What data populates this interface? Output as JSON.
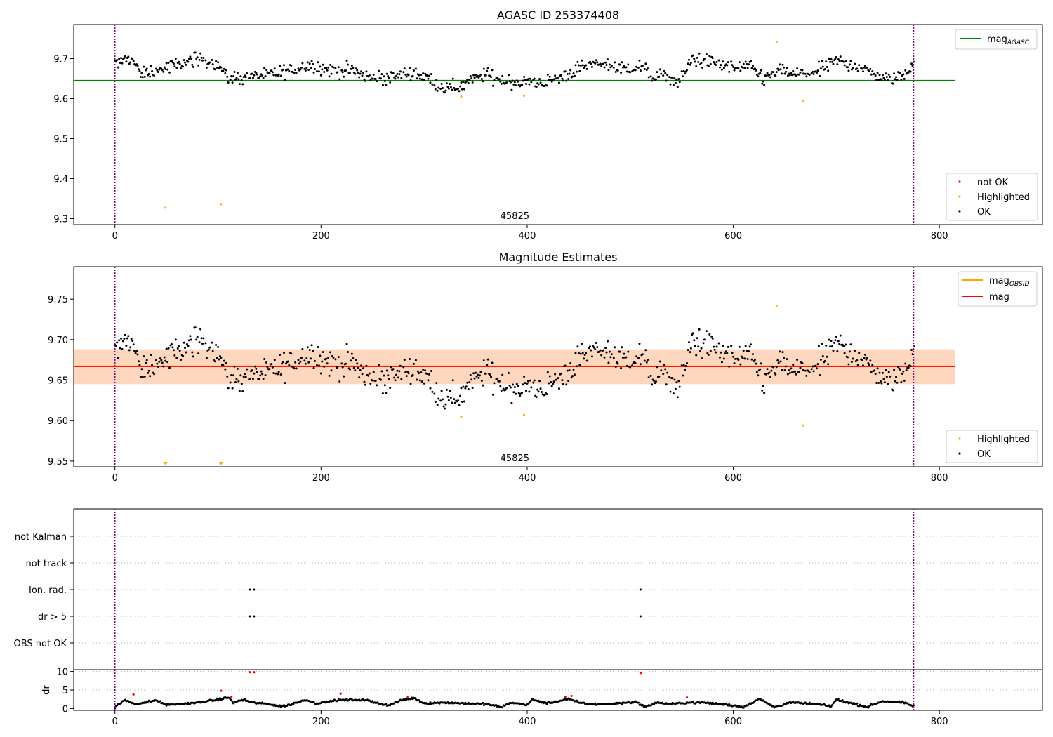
{
  "figure": {
    "title": "AGASC ID 253374408"
  },
  "chart_data": [
    {
      "type": "scatter",
      "title": "",
      "xlim": [
        -40,
        900
      ],
      "ylim": [
        9.285,
        9.785
      ],
      "xticks": [
        "0",
        "200",
        "400",
        "600",
        "800"
      ],
      "yticks": [
        "9.3",
        "9.4",
        "9.5",
        "9.6",
        "9.7"
      ],
      "obsid_label": "45825",
      "obs_bounds": [
        0,
        775
      ],
      "mag_agasc": 9.645,
      "legend_lines": [
        {
          "label": "mag",
          "sub": "AGASC",
          "color": "#008000"
        }
      ],
      "legend_points": [
        {
          "label": "not OK",
          "color": "#ff0000"
        },
        {
          "label": "Highlighted",
          "color": "#ffa500"
        },
        {
          "label": "OK",
          "color": "#000000"
        }
      ],
      "highlighted": [
        [
          49,
          9.327
        ],
        [
          103,
          9.336
        ],
        [
          336,
          9.605
        ],
        [
          397,
          9.607
        ],
        [
          642,
          9.742
        ],
        [
          668,
          9.593
        ]
      ],
      "ok_series": {
        "description": "775 OK points, times 0–775, mags follow trend (mean ≈ 9.67)",
        "trend_knots": [
          [
            0,
            9.685
          ],
          [
            15,
            9.705
          ],
          [
            25,
            9.66
          ],
          [
            40,
            9.67
          ],
          [
            60,
            9.685
          ],
          [
            85,
            9.7
          ],
          [
            100,
            9.685
          ],
          [
            110,
            9.65
          ],
          [
            130,
            9.655
          ],
          [
            150,
            9.66
          ],
          [
            170,
            9.67
          ],
          [
            190,
            9.685
          ],
          [
            210,
            9.67
          ],
          [
            230,
            9.67
          ],
          [
            250,
            9.65
          ],
          [
            270,
            9.655
          ],
          [
            290,
            9.665
          ],
          [
            305,
            9.65
          ],
          [
            315,
            9.63
          ],
          [
            330,
            9.625
          ],
          [
            345,
            9.645
          ],
          [
            360,
            9.66
          ],
          [
            375,
            9.645
          ],
          [
            395,
            9.64
          ],
          [
            415,
            9.64
          ],
          [
            430,
            9.65
          ],
          [
            450,
            9.675
          ],
          [
            470,
            9.69
          ],
          [
            490,
            9.675
          ],
          [
            510,
            9.68
          ],
          [
            520,
            9.655
          ],
          [
            535,
            9.655
          ],
          [
            548,
            9.64
          ],
          [
            560,
            9.7
          ],
          [
            580,
            9.69
          ],
          [
            600,
            9.675
          ],
          [
            615,
            9.68
          ],
          [
            630,
            9.65
          ],
          [
            645,
            9.67
          ],
          [
            660,
            9.66
          ],
          [
            680,
            9.665
          ],
          [
            700,
            9.695
          ],
          [
            715,
            9.685
          ],
          [
            735,
            9.665
          ],
          [
            750,
            9.645
          ],
          [
            765,
            9.66
          ],
          [
            775,
            9.69
          ]
        ],
        "noise": 0.012
      }
    },
    {
      "type": "scatter",
      "title": "Magnitude Estimates",
      "xlim": [
        -40,
        900
      ],
      "ylim": [
        9.543,
        9.79
      ],
      "xticks": [
        "0",
        "200",
        "400",
        "600",
        "800"
      ],
      "yticks": [
        "9.55",
        "9.60",
        "9.65",
        "9.70",
        "9.75"
      ],
      "obsid_label": "45825",
      "obs_bounds": [
        0,
        775
      ],
      "mag_obsid": 9.667,
      "mag_obsid_band": [
        9.645,
        9.688
      ],
      "mag": 9.667,
      "mag_band": [
        9.645,
        9.688
      ],
      "legend_lines": [
        {
          "label": "mag",
          "sub": "OBSID",
          "color": "#ffa500"
        },
        {
          "label": "mag",
          "sub": "",
          "color": "#ff0000"
        }
      ],
      "legend_points": [
        {
          "label": "Highlighted",
          "color": "#ffa500"
        },
        {
          "label": "OK",
          "color": "#000000"
        }
      ],
      "highlighted": [
        [
          336,
          9.605
        ],
        [
          397,
          9.607
        ],
        [
          642,
          9.742
        ],
        [
          668,
          9.594
        ]
      ],
      "highlighted_off_scale": [
        [
          49,
          9.3
        ],
        [
          103,
          9.3
        ]
      ],
      "ok_series": "same as panel 1 OK series"
    },
    {
      "type": "scatter",
      "title": "",
      "xlim": [
        -40,
        900
      ],
      "categories": [
        "not Kalman",
        "not track",
        "Ion. rad.",
        "dr > 5",
        "OBS not OK"
      ],
      "obs_bounds": [
        0,
        775
      ],
      "flag_points": {
        "Ion. rad.": [
          131,
          135,
          510
        ],
        "dr > 5": [
          131,
          135,
          510
        ]
      }
    },
    {
      "type": "scatter",
      "title": "",
      "ylabel": "dr",
      "xlim": [
        -40,
        900
      ],
      "ylim": [
        -0.5,
        10.5
      ],
      "yticks": [
        "0",
        "5",
        "10"
      ],
      "xticks": [
        "0",
        "200",
        "400",
        "600",
        "800"
      ],
      "obs_bounds": [
        0,
        775
      ],
      "red_points": [
        [
          18,
          3.8
        ],
        [
          103,
          4.8
        ],
        [
          113,
          3.2
        ],
        [
          131,
          9.8
        ],
        [
          135,
          9.8
        ],
        [
          219,
          4.0
        ],
        [
          284,
          3.0
        ],
        [
          437,
          3.1
        ],
        [
          443,
          3.4
        ],
        [
          510,
          9.6
        ],
        [
          555,
          3.0
        ]
      ],
      "ok_series": {
        "description": "dr values for 775 samples, scalloped between 0 and ~2.8",
        "trend_knots": [
          [
            0,
            0.3
          ],
          [
            5,
            1.5
          ],
          [
            10,
            2.2
          ],
          [
            20,
            1.2
          ],
          [
            40,
            2.2
          ],
          [
            50,
            1.0
          ],
          [
            75,
            1.4
          ],
          [
            100,
            2.4
          ],
          [
            110,
            3.0
          ],
          [
            115,
            1.6
          ],
          [
            125,
            2.4
          ],
          [
            133,
            1.6
          ],
          [
            150,
            1.2
          ],
          [
            160,
            0.6
          ],
          [
            170,
            1.0
          ],
          [
            185,
            2.4
          ],
          [
            195,
            1.4
          ],
          [
            215,
            2.2
          ],
          [
            230,
            2.4
          ],
          [
            245,
            2.2
          ],
          [
            265,
            0.8
          ],
          [
            280,
            2.4
          ],
          [
            290,
            2.8
          ],
          [
            300,
            1.4
          ],
          [
            320,
            1.6
          ],
          [
            340,
            1.4
          ],
          [
            360,
            1.2
          ],
          [
            375,
            0.4
          ],
          [
            385,
            1.6
          ],
          [
            400,
            1.0
          ],
          [
            405,
            2.4
          ],
          [
            420,
            1.4
          ],
          [
            440,
            2.6
          ],
          [
            450,
            1.6
          ],
          [
            460,
            1.2
          ],
          [
            480,
            1.2
          ],
          [
            505,
            1.8
          ],
          [
            515,
            0.4
          ],
          [
            525,
            1.6
          ],
          [
            540,
            1.2
          ],
          [
            555,
            1.6
          ],
          [
            570,
            1.6
          ],
          [
            590,
            1.2
          ],
          [
            610,
            0.4
          ],
          [
            625,
            2.6
          ],
          [
            640,
            0.4
          ],
          [
            655,
            1.6
          ],
          [
            680,
            1.2
          ],
          [
            695,
            0.6
          ],
          [
            700,
            2.4
          ],
          [
            715,
            1.4
          ],
          [
            730,
            0.4
          ],
          [
            745,
            2.0
          ],
          [
            765,
            1.6
          ],
          [
            775,
            0.6
          ]
        ],
        "noise": 0.3
      }
    }
  ]
}
